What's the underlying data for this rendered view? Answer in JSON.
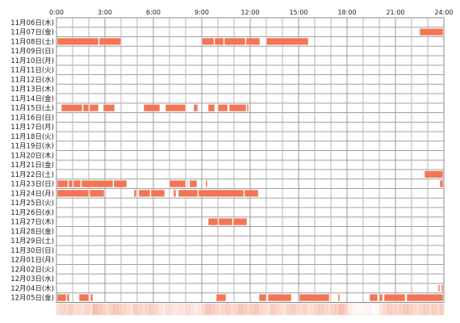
{
  "chart_data": {
    "type": "timeline",
    "x_ticks": [
      "0:00",
      "3:00",
      "6:00",
      "9:00",
      "12:00",
      "15:00",
      "18:00",
      "21:00",
      "24:00"
    ],
    "x_range_hours": [
      0,
      24
    ],
    "grid": true,
    "bar_color": "#f27655",
    "bar_edge_color": "#ffffff",
    "summary_color": "#f27655",
    "days": [
      {
        "label": "11月06日(木)",
        "segments": []
      },
      {
        "label": "11月07日(金)",
        "segments": [
          [
            22.5,
            23.95
          ]
        ]
      },
      {
        "label": "11月08日(土)",
        "segments": [
          [
            0.05,
            2.6
          ],
          [
            2.65,
            4.0
          ],
          [
            9.0,
            9.75
          ],
          [
            9.8,
            10.35
          ],
          [
            10.4,
            11.7
          ],
          [
            11.75,
            12.6
          ],
          [
            13.0,
            15.6
          ]
        ]
      },
      {
        "label": "11月09日(日)",
        "segments": []
      },
      {
        "label": "11月10日(月)",
        "segments": []
      },
      {
        "label": "11月11日(火)",
        "segments": []
      },
      {
        "label": "11月12日(水)",
        "segments": []
      },
      {
        "label": "11月13日(木)",
        "segments": []
      },
      {
        "label": "11月14日(金)",
        "segments": []
      },
      {
        "label": "11月15日(土)",
        "segments": [
          [
            0.3,
            1.6
          ],
          [
            1.65,
            2.0
          ],
          [
            2.05,
            2.6
          ],
          [
            2.9,
            3.6
          ],
          [
            5.4,
            6.4
          ],
          [
            6.75,
            8.0
          ],
          [
            8.5,
            8.75
          ],
          [
            9.4,
            9.8
          ],
          [
            10.0,
            10.6
          ],
          [
            10.7,
            11.75
          ],
          [
            11.8,
            11.9
          ]
        ]
      },
      {
        "label": "11月16日(日)",
        "segments": []
      },
      {
        "label": "11月17日(月)",
        "segments": []
      },
      {
        "label": "11月18日(火)",
        "segments": []
      },
      {
        "label": "11月19日(水)",
        "segments": []
      },
      {
        "label": "11月20日(木)",
        "segments": []
      },
      {
        "label": "11月21日(金)",
        "segments": []
      },
      {
        "label": "11月22日(土)",
        "segments": [
          [
            22.8,
            23.95
          ]
        ]
      },
      {
        "label": "11月23日(日)",
        "segments": [
          [
            0.05,
            0.7
          ],
          [
            0.75,
            1.0
          ],
          [
            1.05,
            1.5
          ],
          [
            1.55,
            3.5
          ],
          [
            3.55,
            4.35
          ],
          [
            7.0,
            8.0
          ],
          [
            8.1,
            8.15
          ],
          [
            8.25,
            8.7
          ],
          [
            9.25,
            9.35
          ],
          [
            23.75,
            23.95
          ]
        ]
      },
      {
        "label": "11月24日(月)",
        "segments": [
          [
            0.05,
            2.0
          ],
          [
            2.05,
            2.95
          ],
          [
            4.8,
            4.95
          ],
          [
            5.1,
            5.8
          ],
          [
            5.85,
            6.7
          ],
          [
            7.25,
            7.4
          ],
          [
            7.55,
            8.75
          ],
          [
            8.8,
            11.6
          ],
          [
            11.65,
            12.5
          ]
        ]
      },
      {
        "label": "11月25日(火)",
        "segments": []
      },
      {
        "label": "11月26日(水)",
        "segments": []
      },
      {
        "label": "11月27日(木)",
        "segments": [
          [
            9.4,
            10.0
          ],
          [
            10.05,
            10.9
          ],
          [
            10.95,
            11.8
          ]
        ]
      },
      {
        "label": "11月28日(金)",
        "segments": []
      },
      {
        "label": "11月29日(土)",
        "segments": []
      },
      {
        "label": "11月30日(日)",
        "segments": []
      },
      {
        "label": "12月01日(月)",
        "segments": []
      },
      {
        "label": "12月02日(火)",
        "segments": []
      },
      {
        "label": "12月03日(水)",
        "segments": []
      },
      {
        "label": "12月04日(木)",
        "segments": [
          [
            23.65,
            23.75
          ],
          [
            23.85,
            23.95
          ]
        ]
      },
      {
        "label": "12月05日(金)",
        "segments": [
          [
            0.05,
            0.6
          ],
          [
            0.65,
            0.8
          ],
          [
            1.4,
            2.0
          ],
          [
            2.1,
            2.25
          ],
          [
            9.9,
            10.5
          ],
          [
            12.55,
            13.0
          ],
          [
            13.1,
            14.55
          ],
          [
            15.05,
            16.9
          ],
          [
            16.95,
            17.0
          ],
          [
            17.45,
            17.55
          ],
          [
            19.4,
            19.9
          ],
          [
            20.0,
            20.2
          ],
          [
            20.3,
            21.6
          ],
          [
            21.7,
            23.95
          ]
        ]
      }
    ],
    "summary_profile": [
      0.25,
      0.3,
      0.28,
      0.35,
      0.22,
      0.25,
      0.2,
      0.3,
      0.25,
      0.45,
      0.4,
      0.35,
      0.25,
      0.35,
      0.4,
      0.35,
      0.3,
      0.25,
      0.2,
      0.35,
      0.3,
      0.25,
      0.3,
      0.35,
      0.3,
      0.2,
      0.15,
      0.25,
      0.2,
      0.15,
      0.2,
      0.18,
      0.25,
      0.2,
      0.15,
      0.18,
      0.3,
      0.4,
      0.35,
      0.3,
      0.25,
      0.3,
      0.35,
      0.25,
      0.3,
      0.4,
      0.35,
      0.3,
      0.35,
      0.4,
      0.3,
      0.25,
      0.2,
      0.35,
      0.3,
      0.25,
      0.2,
      0.3,
      0.35,
      0.3,
      0.25,
      0.3,
      0.2,
      0.25,
      0.3,
      0.35,
      0.3,
      0.25,
      0.3,
      0.35,
      0.45,
      0.35,
      0.15,
      0.08,
      0.05,
      0.05,
      0.05,
      0.08,
      0.0,
      0.05,
      0.18,
      0.3,
      0.35,
      0.3,
      0.28,
      0.32,
      0.38,
      0.35,
      0.3,
      0.25,
      0.3,
      0.35,
      0.3,
      0.35,
      0.3,
      0.35
    ]
  }
}
